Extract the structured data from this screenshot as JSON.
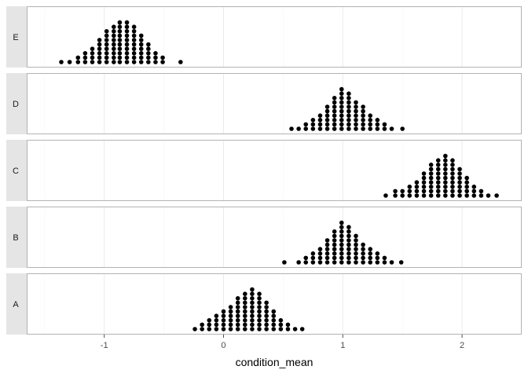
{
  "chart_data": {
    "type": "dotplot",
    "title": "",
    "xlabel": "condition_mean",
    "ylabel": "",
    "xlim": [
      -1.65,
      2.5
    ],
    "x_ticks": [
      -1,
      0,
      1,
      2
    ],
    "x_tick_labels": [
      "-1",
      "0",
      "1",
      "2"
    ],
    "grid": true,
    "facet_order_top_to_bottom": [
      "E",
      "D",
      "C",
      "B",
      "A"
    ],
    "dot_color": "#000000",
    "panel_border_color": "#b3b3b3",
    "strip_fill": "#e5e5e5",
    "grid_color": "#ebebeb",
    "series": [
      {
        "name": "E",
        "center": -0.87,
        "bins": [
          [
            -1.36,
            1
          ],
          [
            -1.29,
            1
          ],
          [
            -1.22,
            2
          ],
          [
            -1.16,
            3
          ],
          [
            -1.1,
            4
          ],
          [
            -1.04,
            6
          ],
          [
            -0.98,
            8
          ],
          [
            -0.92,
            9
          ],
          [
            -0.87,
            10
          ],
          [
            -0.81,
            10
          ],
          [
            -0.75,
            9
          ],
          [
            -0.69,
            7
          ],
          [
            -0.63,
            5
          ],
          [
            -0.57,
            3
          ],
          [
            -0.51,
            2
          ],
          [
            -0.36,
            1
          ]
        ]
      },
      {
        "name": "D",
        "center": 1.0,
        "bins": [
          [
            0.57,
            1
          ],
          [
            0.63,
            1
          ],
          [
            0.69,
            2
          ],
          [
            0.75,
            3
          ],
          [
            0.81,
            4
          ],
          [
            0.87,
            6
          ],
          [
            0.93,
            8
          ],
          [
            0.99,
            10
          ],
          [
            1.05,
            9
          ],
          [
            1.11,
            7
          ],
          [
            1.17,
            6
          ],
          [
            1.23,
            4
          ],
          [
            1.29,
            3
          ],
          [
            1.35,
            2
          ],
          [
            1.41,
            1
          ],
          [
            1.5,
            1
          ]
        ]
      },
      {
        "name": "C",
        "center": 1.83,
        "bins": [
          [
            1.36,
            1
          ],
          [
            1.44,
            2
          ],
          [
            1.5,
            2
          ],
          [
            1.56,
            3
          ],
          [
            1.62,
            4
          ],
          [
            1.68,
            6
          ],
          [
            1.74,
            8
          ],
          [
            1.8,
            9
          ],
          [
            1.86,
            10
          ],
          [
            1.92,
            9
          ],
          [
            1.98,
            7
          ],
          [
            2.04,
            5
          ],
          [
            2.1,
            3
          ],
          [
            2.16,
            2
          ],
          [
            2.22,
            1
          ],
          [
            2.29,
            1
          ]
        ]
      },
      {
        "name": "B",
        "center": 1.0,
        "bins": [
          [
            0.51,
            1
          ],
          [
            0.63,
            1
          ],
          [
            0.69,
            2
          ],
          [
            0.75,
            3
          ],
          [
            0.81,
            4
          ],
          [
            0.87,
            6
          ],
          [
            0.93,
            8
          ],
          [
            0.99,
            10
          ],
          [
            1.05,
            9
          ],
          [
            1.11,
            7
          ],
          [
            1.17,
            5
          ],
          [
            1.23,
            4
          ],
          [
            1.29,
            3
          ],
          [
            1.35,
            2
          ],
          [
            1.41,
            1
          ],
          [
            1.49,
            1
          ]
        ]
      },
      {
        "name": "A",
        "center": 0.2,
        "bins": [
          [
            -0.24,
            1
          ],
          [
            -0.18,
            2
          ],
          [
            -0.12,
            3
          ],
          [
            -0.06,
            4
          ],
          [
            0.0,
            5
          ],
          [
            0.06,
            6
          ],
          [
            0.12,
            8
          ],
          [
            0.18,
            9
          ],
          [
            0.24,
            10
          ],
          [
            0.3,
            9
          ],
          [
            0.36,
            7
          ],
          [
            0.42,
            5
          ],
          [
            0.48,
            3
          ],
          [
            0.54,
            2
          ],
          [
            0.6,
            1
          ],
          [
            0.66,
            1
          ]
        ]
      }
    ]
  }
}
